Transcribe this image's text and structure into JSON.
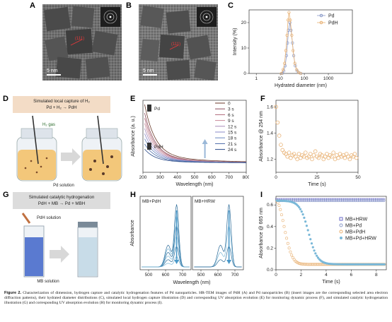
{
  "panels": {
    "A": {
      "label": "A",
      "scalebar": "5 nm",
      "annot": "(111)"
    },
    "B": {
      "label": "B",
      "scalebar": "5 nm",
      "annot": "(111)"
    },
    "C": {
      "label": "C"
    },
    "D": {
      "label": "D",
      "title": "Simulated local capture of H₂",
      "equation": "Pd + H₂ → PdH",
      "gas": "H₂ gas",
      "solution": "Pd solution"
    },
    "E": {
      "label": "E",
      "tag_pd": "Pd",
      "tag_pdh": "PdH"
    },
    "F": {
      "label": "F"
    },
    "G": {
      "label": "G",
      "title": "Simulated catalytic hydrogenation",
      "equation": "PdH + MB → Pd + MBH",
      "drop": "PdH solution",
      "solution": "MB solution"
    },
    "H": {
      "label": "H",
      "tag_left": "MB+PdH",
      "tag_right": "MB+HRW"
    },
    "I": {
      "label": "I"
    }
  },
  "chart_data": [
    {
      "id": "C",
      "type": "line",
      "xlabel": "Hydrated diameter (nm)",
      "ylabel": "Intensity (%)",
      "xscale": "log",
      "xlim": [
        0.5,
        10000
      ],
      "ylim": [
        0,
        25
      ],
      "xticks": [
        1,
        10,
        100,
        1000
      ],
      "yticks": [
        0,
        10,
        20
      ],
      "legend": "top-right",
      "series": [
        {
          "name": "Pd",
          "color": "#8a9ac8",
          "marker": "circle",
          "x": [
            12,
            14,
            16,
            18,
            20,
            22,
            25,
            28,
            32,
            36,
            42,
            50,
            60,
            72
          ],
          "y": [
            0,
            1,
            3,
            7,
            12,
            17,
            20,
            17,
            12,
            7,
            3,
            1,
            0.3,
            0
          ]
        },
        {
          "name": "PdH",
          "color": "#e8b071",
          "marker": "circle",
          "x": [
            11,
            13,
            15,
            17,
            19,
            21,
            23,
            26,
            30,
            34,
            40,
            48,
            58,
            70
          ],
          "y": [
            0,
            1.5,
            4,
            9,
            15,
            21,
            24,
            21,
            15,
            9,
            4,
            1.5,
            0.4,
            0
          ]
        }
      ]
    },
    {
      "id": "E",
      "type": "line",
      "xlabel": "Wavelength (nm)",
      "ylabel": "Absorbance (a. u.)",
      "xlim": [
        200,
        800
      ],
      "xticks": [
        200,
        300,
        400,
        500,
        600,
        700,
        800
      ],
      "legend": "top-right",
      "series": [
        {
          "name": "0",
          "color": "#6b3a2a"
        },
        {
          "name": "3 s",
          "color": "#8c4a5a"
        },
        {
          "name": "6 s",
          "color": "#b06a78"
        },
        {
          "name": "9 s",
          "color": "#c8899a"
        },
        {
          "name": "12 s",
          "color": "#a88ab8"
        },
        {
          "name": "15 s",
          "color": "#8a8ac8"
        },
        {
          "name": "18 s",
          "color": "#6a88c0"
        },
        {
          "name": "21 s",
          "color": "#4a6aa8"
        },
        {
          "name": "24 s",
          "color": "#2a4a88"
        }
      ]
    },
    {
      "id": "F",
      "type": "scatter",
      "xlabel": "Time (s)",
      "ylabel": "Absorbance @ 254 nm",
      "xlim": [
        0,
        50
      ],
      "ylim": [
        1.1,
        1.65
      ],
      "xticks": [
        0,
        25,
        50
      ],
      "yticks": [
        1.2,
        1.4,
        1.6
      ],
      "series": [
        {
          "color": "#e8b071",
          "x": [
            0,
            1,
            2,
            3,
            4,
            5,
            6,
            7,
            8,
            9,
            10,
            11,
            12,
            13,
            14,
            15,
            16,
            17,
            18,
            19,
            20,
            21,
            22,
            23,
            24,
            25,
            26,
            27,
            28,
            29,
            30,
            31,
            32,
            33,
            34,
            35,
            36,
            37,
            38,
            39,
            40,
            41,
            42,
            43,
            44,
            45,
            46,
            47,
            48,
            49
          ],
          "y": [
            1.6,
            1.48,
            1.38,
            1.31,
            1.27,
            1.25,
            1.24,
            1.22,
            1.25,
            1.21,
            1.23,
            1.24,
            1.22,
            1.2,
            1.24,
            1.21,
            1.23,
            1.22,
            1.25,
            1.21,
            1.22,
            1.24,
            1.2,
            1.23,
            1.26,
            1.22,
            1.21,
            1.24,
            1.23,
            1.2,
            1.22,
            1.24,
            1.21,
            1.23,
            1.22,
            1.25,
            1.2,
            1.23,
            1.21,
            1.24,
            1.22,
            1.23,
            1.21,
            1.24,
            1.22,
            1.2,
            1.23,
            1.22,
            1.24,
            1.21
          ]
        }
      ]
    },
    {
      "id": "H",
      "type": "line",
      "xlabel": "Wavelength (nm)",
      "ylabel": "Absorbance",
      "xticks": [
        500,
        600,
        700
      ]
    },
    {
      "id": "I",
      "type": "scatter",
      "xlabel": "Time (s)",
      "ylabel": "Absorbance @ 665 nm",
      "xlim": [
        0,
        8.8
      ],
      "ylim": [
        0,
        0.68
      ],
      "xticks": [
        0,
        2,
        4,
        6,
        8
      ],
      "yticks": [
        0.0,
        0.2,
        0.4,
        0.6
      ],
      "legend": "right",
      "series": [
        {
          "name": "MB+HRW",
          "color": "#6a6ac8",
          "marker": "square"
        },
        {
          "name": "MB+Pd",
          "color": "#8a9ac8",
          "marker": "circle"
        },
        {
          "name": "MB+PdH",
          "color": "#e8b071",
          "marker": "circle"
        },
        {
          "name": "MB+Pd+HRW",
          "color": "#7ab8d8",
          "marker": "star"
        }
      ]
    }
  ],
  "caption": {
    "head": "Figure 2.",
    "text": " Characterization of dimension, hydrogen capture and catalytic hydrogenation features of Pd nanoparticles. HR-TEM images of PdH (A) and Pd nanoparticles (B) (insert images are the corresponding selected area electron diffraction patterns), their hydrated diameter distributions (C), simulated local hydrogen capture illustration (D) and corresponding UV absorption evolution (E) for monitoring dynamic process (F), and simulated catalytic hydrogenation illustration (G) and corresponding UV absorption evolution (H) for monitoring dynamic process (I)."
  },
  "colors": {
    "pd": "#8a9ac8",
    "pdh": "#e8b071",
    "mb": "#5a88c8",
    "accent": "#c0392b"
  }
}
